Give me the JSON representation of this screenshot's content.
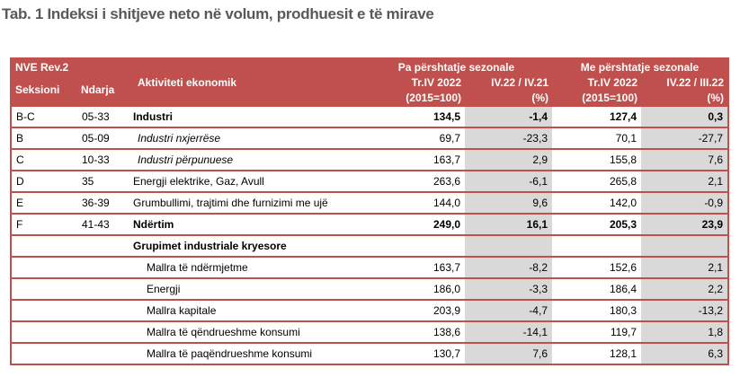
{
  "title": "Tab. 1 Indeksi i shitjeve neto në volum, prodhuesit e të mirave",
  "header": {
    "nve": "NVE Rev.2",
    "seksioni": "Seksioni",
    "ndarja": "Ndarja",
    "activity": "Aktiviteti ekonomik",
    "group1": "Pa përshtatje sezonale",
    "group2": "Me përshtatje sezonale",
    "c1a": "Tr.IV 2022",
    "c1b": "(2015=100)",
    "c2a": "IV.22 / IV.21",
    "c2b": "(%)",
    "c3a": "Tr.IV 2022",
    "c3b": "(2015=100)",
    "c4a": "IV.22 / III.22",
    "c4b": "(%)"
  },
  "rows": [
    {
      "sek": "B-C",
      "nd": "05-33",
      "act": "Industri",
      "v1": "134,5",
      "v2": "-1,4",
      "v3": "127,4",
      "v4": "0,3"
    },
    {
      "sek": "B",
      "nd": "05-09",
      "act": "Industri nxjerrëse",
      "v1": "69,7",
      "v2": "-23,3",
      "v3": "70,1",
      "v4": "-27,7"
    },
    {
      "sek": "C",
      "nd": "10-33",
      "act": "Industri përpunuese",
      "v1": "163,7",
      "v2": "2,9",
      "v3": "155,8",
      "v4": "7,6"
    },
    {
      "sek": "D",
      "nd": "35",
      "act": "Energji elektrike, Gaz, Avull",
      "v1": "263,6",
      "v2": "-6,1",
      "v3": "265,8",
      "v4": "2,1"
    },
    {
      "sek": "E",
      "nd": "36-39",
      "act": "Grumbullimi, trajtimi dhe furnizimi me ujë",
      "v1": "144,0",
      "v2": "9,6",
      "v3": "142,0",
      "v4": "-0,9"
    },
    {
      "sek": "F",
      "nd": "41-43",
      "act": "Ndërtim",
      "v1": "249,0",
      "v2": "16,1",
      "v3": "205,3",
      "v4": "23,9"
    },
    {
      "act": "Grupimet industriale kryesore"
    },
    {
      "act": "Mallra të ndërmjetme",
      "v1": "163,7",
      "v2": "-8,2",
      "v3": "152,6",
      "v4": "2,1"
    },
    {
      "act": "Energji",
      "v1": "186,0",
      "v2": "-3,3",
      "v3": "186,4",
      "v4": "2,2"
    },
    {
      "act": "Mallra kapitale",
      "v1": "203,9",
      "v2": "-4,7",
      "v3": "180,3",
      "v4": "-13,2"
    },
    {
      "act": "Mallra të qëndrueshme konsumi",
      "v1": "138,6",
      "v2": "-14,1",
      "v3": "119,7",
      "v4": "1,8"
    },
    {
      "act": "Mallra të paqëndrueshme konsumi",
      "v1": "130,7",
      "v2": "7,6",
      "v3": "128,1",
      "v4": "6,3"
    }
  ]
}
